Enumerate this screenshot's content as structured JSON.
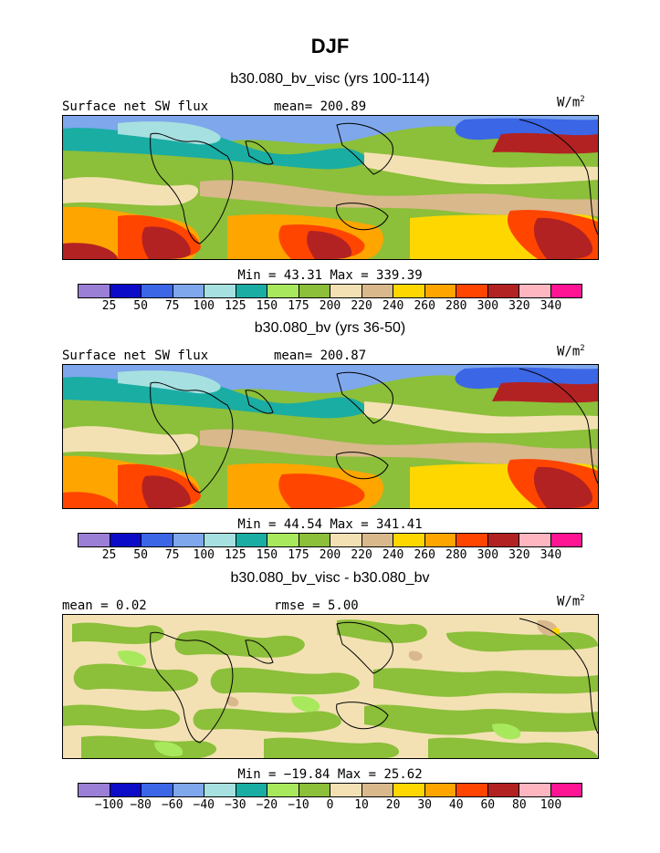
{
  "title": "DJF",
  "panels": [
    {
      "title": "b30.080_bv_visc (yrs 100-114)",
      "left_label": "Surface net SW flux",
      "center_label": "mean= 200.89",
      "unit": "W/m",
      "unit_sup": "2",
      "stats": "Min =  43.31 Max = 339.39",
      "colorbar": {
        "colors": [
          "#9b7fd6",
          "#0b0bc8",
          "#3b66e6",
          "#7ea7ec",
          "#a6e0e0",
          "#1aada3",
          "#a8e85c",
          "#8cbf3a",
          "#f3e1b4",
          "#d9b88c",
          "#ffd700",
          "#ffa500",
          "#ff4500",
          "#b22222",
          "#ffb6c1",
          "#ff1493"
        ],
        "labels": [
          "25",
          "50",
          "75",
          "100",
          "125",
          "150",
          "175",
          "200",
          "220",
          "240",
          "260",
          "280",
          "300",
          "320",
          "340"
        ]
      }
    },
    {
      "title": "b30.080_bv (yrs 36-50)",
      "left_label": "Surface net SW flux",
      "center_label": "mean= 200.87",
      "unit": "W/m",
      "unit_sup": "2",
      "stats": "Min =  44.54 Max = 341.41",
      "colorbar": {
        "colors": [
          "#9b7fd6",
          "#0b0bc8",
          "#3b66e6",
          "#7ea7ec",
          "#a6e0e0",
          "#1aada3",
          "#a8e85c",
          "#8cbf3a",
          "#f3e1b4",
          "#d9b88c",
          "#ffd700",
          "#ffa500",
          "#ff4500",
          "#b22222",
          "#ffb6c1",
          "#ff1493"
        ],
        "labels": [
          "25",
          "50",
          "75",
          "100",
          "125",
          "150",
          "175",
          "200",
          "220",
          "240",
          "260",
          "280",
          "300",
          "320",
          "340"
        ]
      }
    },
    {
      "title": "b30.080_bv_visc - b30.080_bv",
      "left_label": "mean =   0.02",
      "center_label": "rmse =   5.00",
      "unit": "W/m",
      "unit_sup": "2",
      "stats": "Min = −19.84 Max =  25.62",
      "colorbar": {
        "colors": [
          "#9b7fd6",
          "#0b0bc8",
          "#3b66e6",
          "#7ea7ec",
          "#a6e0e0",
          "#1aada3",
          "#a8e85c",
          "#8cbf3a",
          "#f3e1b4",
          "#d9b88c",
          "#ffd700",
          "#ffa500",
          "#ff4500",
          "#b22222",
          "#ffb6c1",
          "#ff1493"
        ],
        "labels": [
          "−100",
          "−80",
          "−60",
          "−40",
          "−30",
          "−20",
          "−10",
          "0",
          "10",
          "20",
          "30",
          "40",
          "60",
          "80",
          "100"
        ]
      }
    }
  ]
}
